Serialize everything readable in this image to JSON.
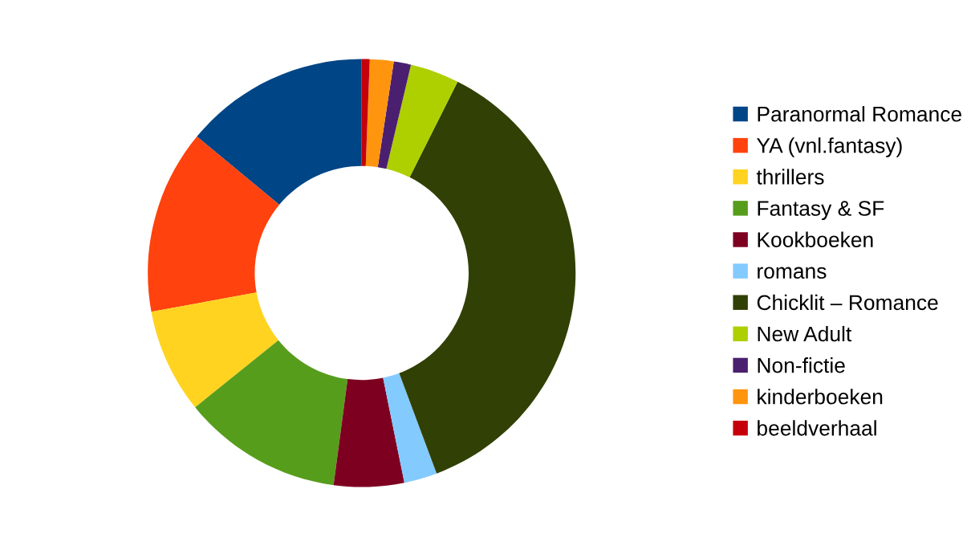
{
  "chart_data": {
    "type": "donut",
    "categories": [
      "Paranormal Romance",
      "YA (vnl.fantasy)",
      "thrillers",
      "Fantasy & SF",
      "Kookboeken",
      "romans",
      "Chicklit – Romance",
      "New Adult",
      "Non-fictie",
      "kinderboeken",
      "beeldverhaal"
    ],
    "values": [
      14.0,
      13.9,
      7.9,
      12.1,
      5.3,
      2.5,
      36.9,
      3.7,
      1.3,
      1.8,
      0.6
    ],
    "colors": [
      "#004586",
      "#ff420e",
      "#ffd320",
      "#579d1c",
      "#7e0021",
      "#83caff",
      "#314004",
      "#aecf00",
      "#4b1f6f",
      "#ff950e",
      "#c5000b"
    ],
    "legend": "right"
  }
}
